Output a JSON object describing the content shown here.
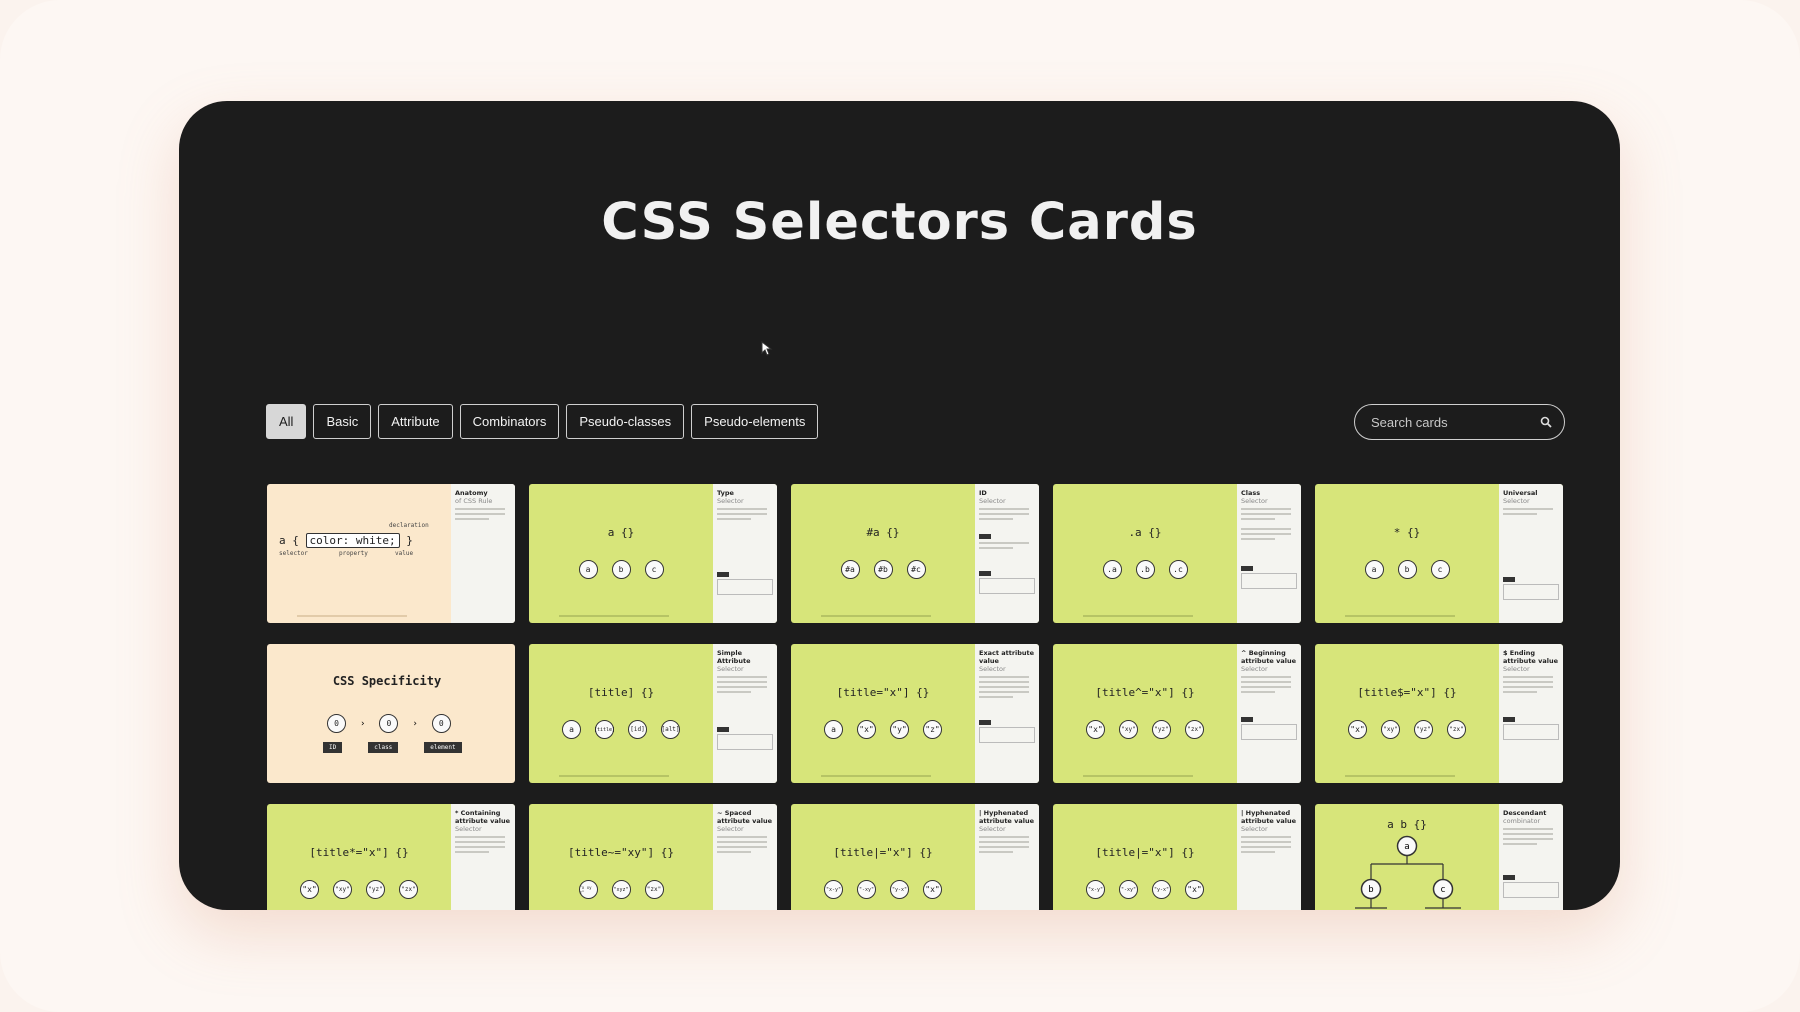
{
  "page": {
    "title": "CSS Selectors Cards"
  },
  "filters": [
    {
      "label": "All",
      "active": true
    },
    {
      "label": "Basic",
      "active": false
    },
    {
      "label": "Attribute",
      "active": false
    },
    {
      "label": "Combinators",
      "active": false
    },
    {
      "label": "Pseudo-classes",
      "active": false
    },
    {
      "label": "Pseudo-elements",
      "active": false
    }
  ],
  "search": {
    "placeholder": "Search cards",
    "icon": "search-icon"
  },
  "cards": {
    "anatomy": {
      "heading": "Anatomy",
      "sub": "of CSS Rule",
      "selector": "a",
      "declaration": "color: white;",
      "lbl_declaration": "declaration",
      "lbl_selector": "selector",
      "lbl_property": "property",
      "lbl_value": "value"
    },
    "type": {
      "heading": "Type",
      "sub": "Selector",
      "code": "a {}",
      "circles": [
        "a",
        "b",
        "c"
      ]
    },
    "id": {
      "heading": "ID",
      "sub": "Selector",
      "code": "#a {}",
      "circles": [
        "#a",
        "#b",
        "#c"
      ]
    },
    "class": {
      "heading": "Class",
      "sub": "Selector",
      "code": ".a {}",
      "circles": [
        ".a",
        ".b",
        ".c"
      ]
    },
    "universal": {
      "heading": "Universal",
      "sub": "Selector",
      "code": "* {}",
      "circles": [
        "a",
        "b",
        "c"
      ]
    },
    "specificity": {
      "title": "CSS Specificity",
      "values": [
        "0",
        "0",
        "0"
      ],
      "tags": [
        "ID",
        "class",
        "element"
      ]
    },
    "simple_attr": {
      "heading": "Simple Attribute",
      "sub": "Selector",
      "code": "[title] {}",
      "circles": [
        "a",
        "[title]",
        "[id]",
        "[alt]"
      ]
    },
    "exact_attr": {
      "heading": "Exact attribute value",
      "sub": "Selector",
      "code": "[title=\"x\"] {}",
      "circles": [
        "a",
        "\"x\"",
        "\"y\"",
        "\"z\""
      ]
    },
    "begin_attr": {
      "heading": "^ Beginning attribute value",
      "sub": "Selector",
      "code": "[title^=\"x\"] {}",
      "circles": [
        "\"x\"",
        "\"xy\"",
        "\"yz\"",
        "\"zx\""
      ]
    },
    "end_attr": {
      "heading": "$ Ending attribute value",
      "sub": "Selector",
      "code": "[title$=\"x\"] {}",
      "circles": [
        "\"x\"",
        "\"xy\"",
        "\"yz\"",
        "\"zx\""
      ]
    },
    "contain_attr": {
      "heading": "* Containing attribute value",
      "sub": "Selector",
      "code": "[title*=\"x\"] {}",
      "circles": [
        "\"x\"",
        "\"xy\"",
        "\"yz\"",
        "\"zx\""
      ]
    },
    "spaced_attr": {
      "heading": "~ Spaced attribute value",
      "sub": "Selector",
      "code": "[title~=\"xy\"] {}",
      "circles": [
        "\"x xy z\"",
        "\"xyz\"",
        "\"zx\""
      ]
    },
    "hyph_attr_1": {
      "heading": "| Hyphenated attribute value",
      "sub": "Selector",
      "code": "[title|=\"x\"] {}",
      "circles": [
        "\"x-y\"",
        "\"-xy\"",
        "\"y-x\"",
        "\"x\""
      ]
    },
    "hyph_attr_2": {
      "heading": "| Hyphenated attribute value",
      "sub": "Selector",
      "code": "[title|=\"x\"] {}",
      "circles": [
        "\"x-y\"",
        "\"-xy\"",
        "\"y-x\"",
        "\"x\""
      ]
    },
    "descendant": {
      "heading": "Descendant",
      "sub": "combinator",
      "code": "a b {}",
      "nodes": [
        "a",
        "b",
        "c"
      ]
    }
  }
}
